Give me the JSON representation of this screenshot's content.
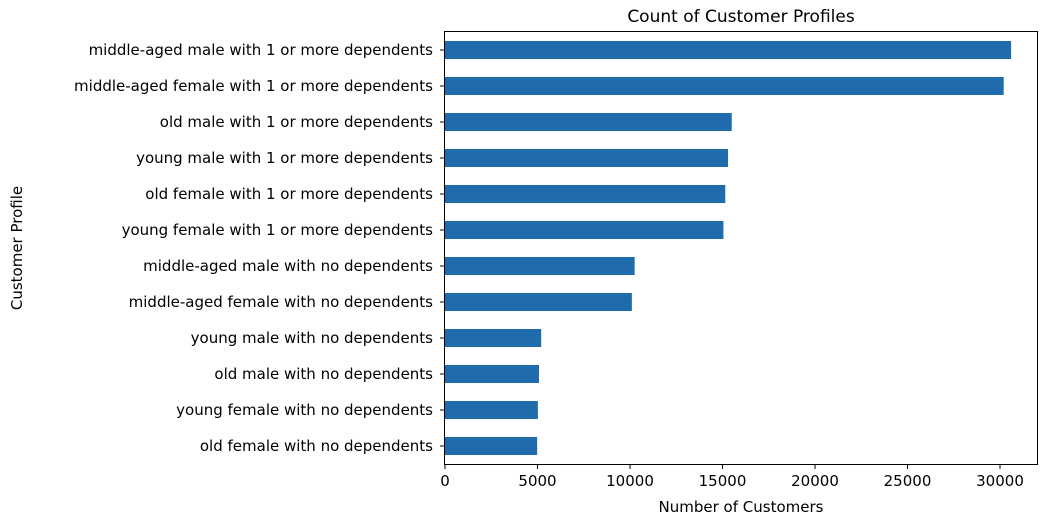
{
  "chart_data": {
    "type": "bar",
    "orientation": "horizontal",
    "title": "Count of Customer Profiles",
    "xlabel": "Number of Customers",
    "ylabel": "Customer Profile",
    "xlim": [
      0,
      32000
    ],
    "xticks": [
      0,
      5000,
      10000,
      15000,
      20000,
      25000,
      30000
    ],
    "grid": false,
    "bar_color": "#1f6bab",
    "categories": [
      "middle-aged male with 1 or more dependents",
      "middle-aged female with 1 or more dependents",
      "old male with 1 or more dependents",
      "young male with 1 or more dependents",
      "old female with 1 or more dependents",
      "young female with 1 or more dependents",
      "middle-aged male with no dependents",
      "middle-aged female with no dependents",
      "young male with no dependents",
      "old male with no dependents",
      "young female with no dependents",
      "old female with no dependents"
    ],
    "values": [
      30600,
      30200,
      15500,
      15300,
      15150,
      15050,
      10250,
      10100,
      5200,
      5080,
      5020,
      4980
    ]
  }
}
